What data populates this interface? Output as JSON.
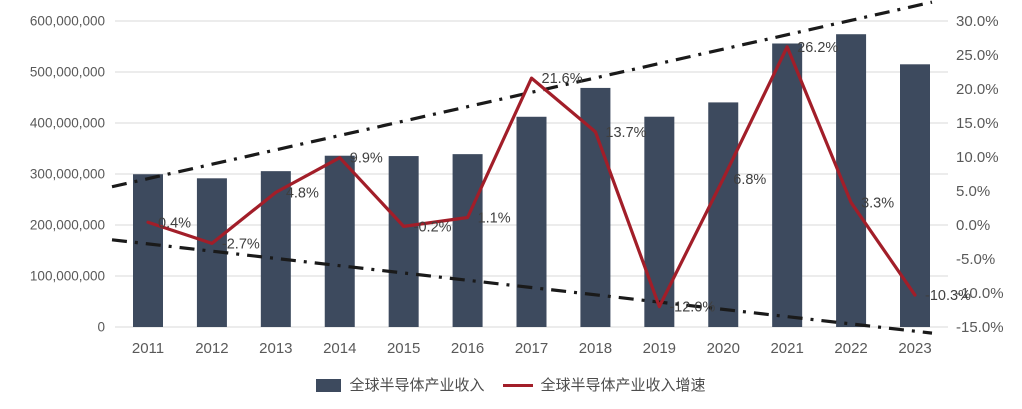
{
  "chart_data": {
    "type": "combo_bar_line",
    "title": "",
    "categories": [
      "2011",
      "2012",
      "2013",
      "2014",
      "2015",
      "2016",
      "2017",
      "2018",
      "2019",
      "2020",
      "2021",
      "2022",
      "2023"
    ],
    "series": [
      {
        "name": "全球半导体产业收入",
        "type": "bar",
        "axis": "left",
        "color": "#3D4A5E",
        "values": [
          299521000,
          291562000,
          305584000,
          335843000,
          335168000,
          338931000,
          412221000,
          468778000,
          412307000,
          440389000,
          555893000,
          574084000,
          515095000
        ]
      },
      {
        "name": "全球半导体产业收入增速",
        "type": "line",
        "axis": "right",
        "color": "#A21E29",
        "values": [
          0.4,
          -2.7,
          4.8,
          9.9,
          -0.2,
          1.1,
          21.6,
          13.7,
          -12.0,
          6.8,
          26.2,
          3.3,
          -10.3
        ],
        "point_labels": [
          "0.4%",
          "-2.7%",
          "4.8%",
          "9.9%",
          "-0.2%",
          "1.1%",
          "21.6%",
          "13.7%",
          "-12.0%",
          "6.8%",
          "26.2%",
          "3.3%",
          "-10.3%"
        ]
      }
    ],
    "left_axis": {
      "min": 0,
      "max": 600000000,
      "tick_step": 100000000,
      "tick_labels": [
        "0",
        "100,000,000",
        "200,000,000",
        "300,000,000",
        "400,000,000",
        "500,000,000",
        "600,000,000"
      ]
    },
    "right_axis": {
      "min": -15,
      "max": 30,
      "tick_step": 5,
      "tick_labels": [
        "-15.0%",
        "-10.0%",
        "-5.0%",
        "0.0%",
        "5.0%",
        "10.0%",
        "15.0%",
        "20.0%",
        "25.0%",
        "30.0%"
      ]
    },
    "trend_lines": [
      {
        "name": "upper-trend-line",
        "axis": "left",
        "start_value": 275000000,
        "end_value": 637000000,
        "style": "dash-dot",
        "color": "#1A1A1A"
      },
      {
        "name": "lower-trend-line",
        "axis": "left",
        "start_value": 171000000,
        "end_value": -12000000,
        "style": "dash-dot",
        "color": "#1A1A1A"
      }
    ],
    "grid": "horizontal",
    "legend_position": "bottom"
  },
  "legend": {
    "items": [
      {
        "label": "全球半导体产业收入",
        "marker": "square",
        "color": "#3D4A5E"
      },
      {
        "label": "全球半导体产业收入增速",
        "marker": "line",
        "color": "#A21E29"
      }
    ]
  },
  "colors": {
    "bar": "#3D4A5E",
    "line": "#A21E29",
    "gridline": "#D9D9D9",
    "axis_text": "#595959",
    "data_label_text": "#3F3F3F",
    "trend_line": "#1A1A1A",
    "background": "#FFFFFF"
  }
}
